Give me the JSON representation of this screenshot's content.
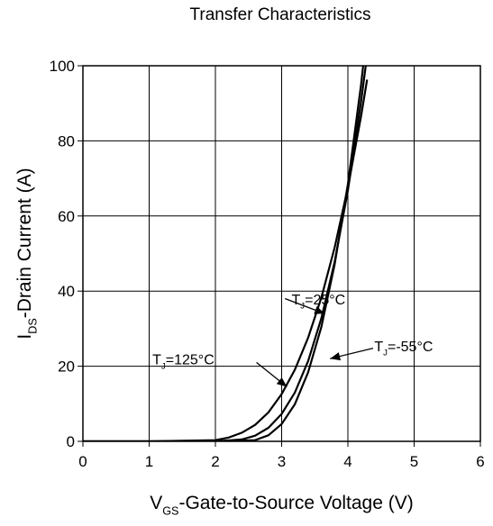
{
  "chart_data": {
    "type": "line",
    "title": "Transfer Characteristics",
    "xlabel": {
      "main": "V",
      "sub": "GS",
      "rest": "-Gate-to-Source Voltage (V)"
    },
    "ylabel": {
      "main": "I",
      "sub": "DS",
      "rest": "-Drain Current (A)"
    },
    "xlim": [
      0,
      6
    ],
    "ylim": [
      0,
      100
    ],
    "xticks": [
      0,
      1,
      2,
      3,
      4,
      5,
      6
    ],
    "yticks": [
      0,
      20,
      40,
      60,
      80,
      100
    ],
    "grid": true,
    "legend": "none",
    "series": [
      {
        "name": "TJ=125°C",
        "x": [
          0,
          1.0,
          2.0,
          2.2,
          2.4,
          2.6,
          2.8,
          3.0,
          3.2,
          3.4,
          3.6,
          3.8,
          4.0,
          4.2,
          4.29
        ],
        "y": [
          0,
          0,
          0.3,
          1.0,
          2.3,
          4.4,
          7.7,
          12.6,
          19.1,
          27.6,
          38.3,
          51.6,
          67.6,
          86.7,
          96.3
        ]
      },
      {
        "name": "TJ=25°C",
        "x": [
          0,
          1.0,
          2.0,
          2.4,
          2.6,
          2.8,
          3.0,
          3.2,
          3.4,
          3.6,
          3.8,
          4.0,
          4.2,
          4.3
        ],
        "y": [
          0,
          0,
          0,
          0.5,
          1.5,
          3.6,
          7.3,
          13.0,
          21.4,
          32.8,
          47.8,
          66.8,
          90.6,
          104.2
        ]
      },
      {
        "name": "TJ=-55°C",
        "x": [
          0,
          1.0,
          2.0,
          2.6,
          2.8,
          3.0,
          3.2,
          3.4,
          3.6,
          3.8,
          4.0,
          4.2,
          4.4
        ],
        "y": [
          0,
          0,
          0,
          0.3,
          1.6,
          4.6,
          9.9,
          18.4,
          30.5,
          47.1,
          68.5,
          95.1,
          127.2
        ]
      }
    ],
    "annotations": [
      {
        "main": "T",
        "sub": "J",
        "rest": "=25°C",
        "ax": 3.15,
        "ay": 36.5,
        "tx": 3.65,
        "ty": 34.0
      },
      {
        "main": "T",
        "sub": "J",
        "rest": "=125°C",
        "ax": 1.05,
        "ay": 20.5,
        "tx": 3.08,
        "ty": 14.5
      },
      {
        "main": "T",
        "sub": "J",
        "rest": "=-55°C",
        "ax": 4.4,
        "ay": 24.0,
        "tx": 3.73,
        "ty": 22.0
      }
    ]
  }
}
